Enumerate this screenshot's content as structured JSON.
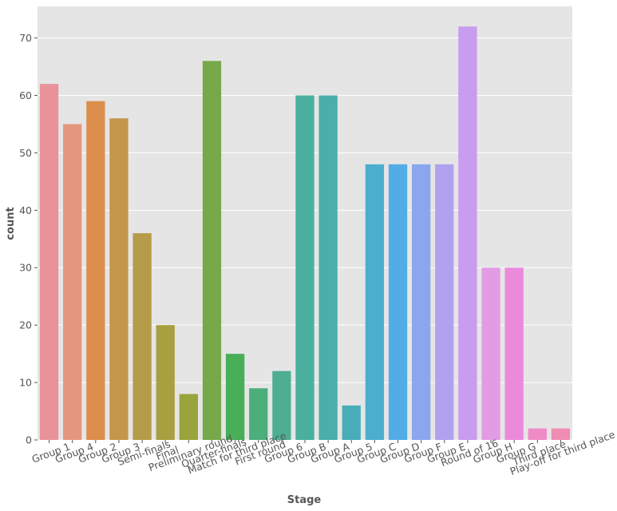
{
  "chart_data": {
    "type": "bar",
    "title": "",
    "xlabel": "Stage",
    "ylabel": "count",
    "ylim": [
      0,
      75.5
    ],
    "yticks": [
      0,
      10,
      20,
      30,
      40,
      50,
      60,
      70
    ],
    "grid": true,
    "background": "#E5E5E5",
    "categories": [
      "Group 1",
      "Group 4",
      "Group 2",
      "Group 3",
      "Semi-finals",
      "Final",
      "Preliminary round",
      "Quarter-finals",
      "Match for third place",
      "First round",
      "Group 6",
      "Group B",
      "Group A",
      "Group 5",
      "Group C",
      "Group D",
      "Group F",
      "Group E",
      "Round of 16",
      "Group H",
      "Group G",
      "Third place",
      "Play-off for third place"
    ],
    "values": [
      62,
      55,
      59,
      56,
      36,
      20,
      8,
      66,
      15,
      9,
      12,
      60,
      60,
      6,
      48,
      48,
      48,
      48,
      72,
      30,
      30,
      2,
      2
    ],
    "colors": [
      "#E8939A",
      "#E3977E",
      "#DC8E4C",
      "#C4964B",
      "#B69C48",
      "#A8A040",
      "#9AA43E",
      "#77A84A",
      "#48AE58",
      "#4BAE7B",
      "#4EAE92",
      "#4AAF9F",
      "#4AAEAB",
      "#48ADB9",
      "#4CAECE",
      "#52ACE6",
      "#8AA6EE",
      "#B0A2EE",
      "#C89CEE",
      "#E39BE5",
      "#EB8ADB",
      "#EF8BC6",
      "#EE8CB4"
    ]
  }
}
